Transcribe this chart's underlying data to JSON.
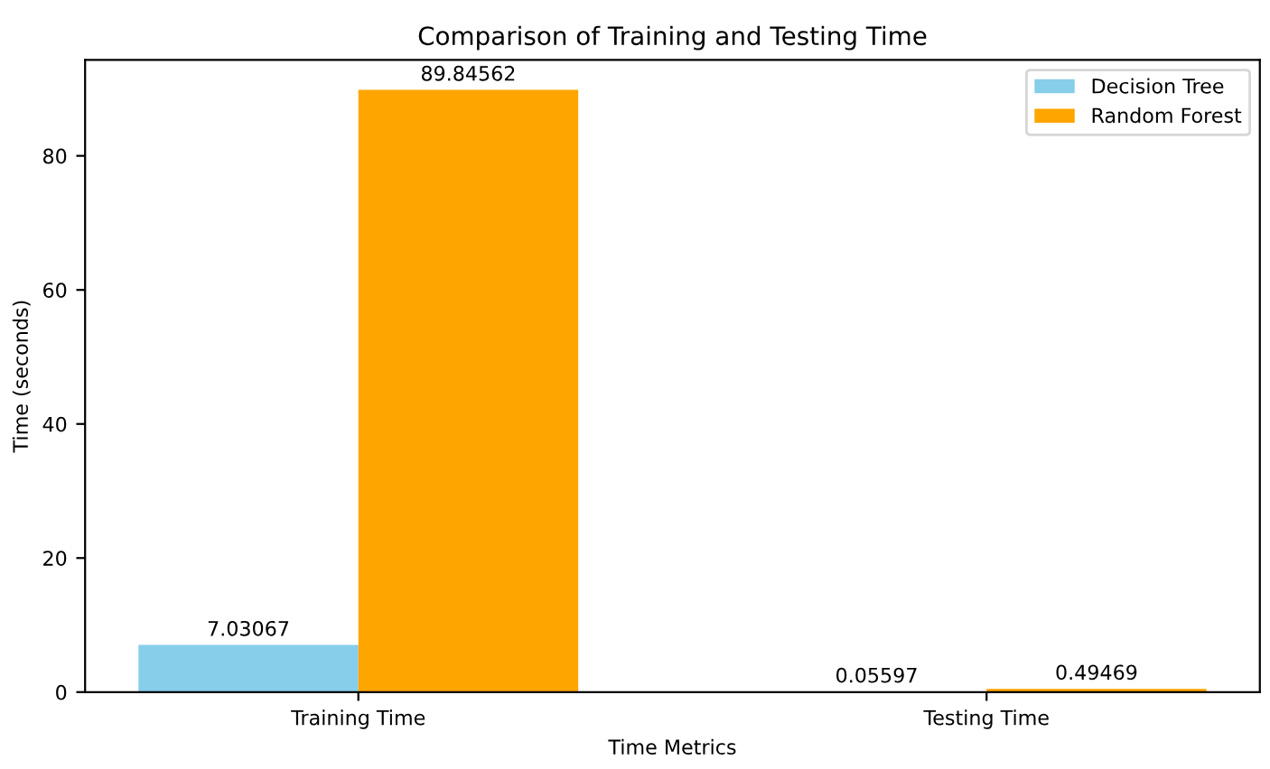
{
  "chart_data": {
    "type": "bar",
    "title": "Comparison of Training and Testing Time",
    "xlabel": "Time Metrics",
    "ylabel": "Time (seconds)",
    "categories": [
      "Training Time",
      "Testing Time"
    ],
    "series": [
      {
        "name": "Decision Tree",
        "color": "#87ceeb",
        "values": [
          7.03067,
          0.05597
        ]
      },
      {
        "name": "Random Forest",
        "color": "#ffa500",
        "values": [
          89.84562,
          0.49469
        ]
      }
    ],
    "ylim": [
      0,
      94.3
    ],
    "yticks": [
      0,
      20,
      40,
      60,
      80
    ],
    "data_labels": true,
    "legend": "top right",
    "grid": false
  }
}
